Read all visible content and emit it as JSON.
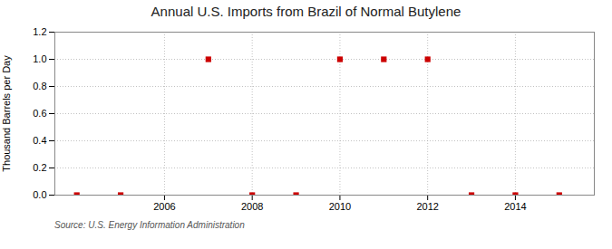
{
  "chart_data": {
    "type": "scatter",
    "title": "Annual U.S. Imports from Brazil of Normal Butylene",
    "ylabel": "Thousand Barrels per Day",
    "annotations": [
      "Source: U.S. Energy Information Administration"
    ],
    "x": [
      2004,
      2005,
      2007,
      2008,
      2009,
      2010,
      2011,
      2012,
      2013,
      2014,
      2015
    ],
    "values": [
      0.0,
      0.0,
      1.0,
      0.0,
      0.0,
      1.0,
      1.0,
      1.0,
      0.0,
      0.0,
      0.0
    ],
    "color": "#cc0000",
    "marker": "square",
    "xlim": [
      2003.5,
      2015.8
    ],
    "xticks": [
      2006,
      2008,
      2010,
      2012,
      2014
    ],
    "ylim": [
      0.0,
      1.2
    ],
    "yticks": [
      {
        "value": 0.0,
        "label": "0.0"
      },
      0.2,
      0.4,
      0.6,
      0.8,
      {
        "value": 1.0,
        "label": "1.0"
      },
      1.2
    ],
    "grid": true
  }
}
